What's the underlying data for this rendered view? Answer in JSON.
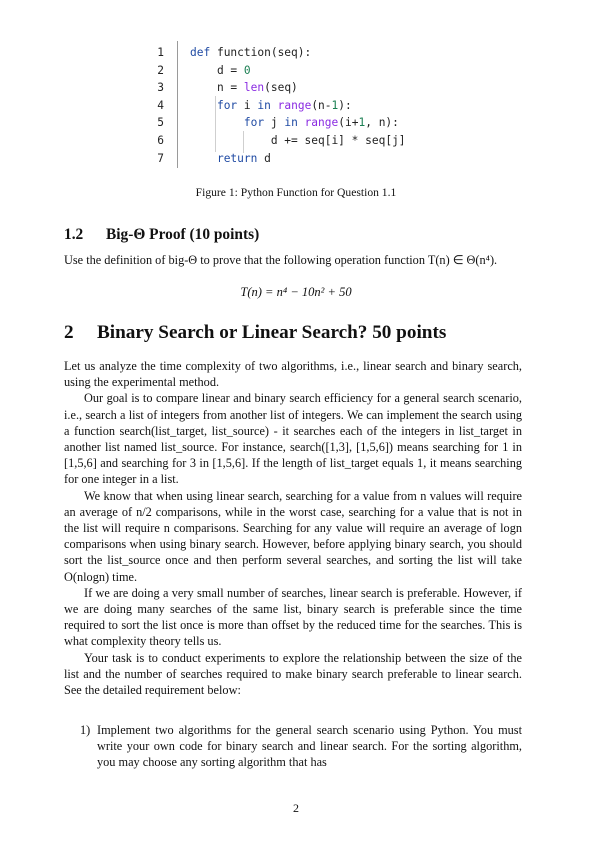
{
  "code": {
    "lines": [
      {
        "n": "1",
        "text": "def function(seq):"
      },
      {
        "n": "2",
        "text": "    d = 0"
      },
      {
        "n": "3",
        "text": "    n = len(seq)"
      },
      {
        "n": "4",
        "text": "    for i in range(n-1):"
      },
      {
        "n": "5",
        "text": "        for j in range(i+1, n):"
      },
      {
        "n": "6",
        "text": "            d += seq[i] * seq[j]"
      },
      {
        "n": "7",
        "text": "    return d"
      }
    ]
  },
  "figure_caption": "Figure 1: Python Function for Question 1.1",
  "subsection": {
    "number": "1.2",
    "title": "Big-Θ Proof (10 points)",
    "text": "Use the definition of big-Θ to prove that the following operation function T(n) ∈ Θ(n⁴).",
    "equation": "T(n) = n⁴ − 10n² + 50"
  },
  "section": {
    "number": "2",
    "title": "Binary Search or Linear Search? 50 points"
  },
  "paragraphs": [
    "Let us analyze the time complexity of two algorithms, i.e., linear search and binary search, using the experimental method.",
    "Our goal is to compare linear and binary search efficiency for a general search scenario, i.e., search a list of integers from another list of integers. We can implement the search using a function search(list_target, list_source) - it searches each of the integers in list_target in another list named list_source. For instance, search([1,3], [1,5,6]) means searching for 1 in [1,5,6] and searching for 3 in [1,5,6]. If the length of list_target equals 1, it means searching for one integer in a list.",
    "We know that when using linear search, searching for a value from n values will require an average of n/2 comparisons, while in the worst case, searching for a value that is not in the list will require n comparisons. Searching for any value will require an average of logn comparisons when using binary search. However, before applying binary search, you should sort the list_source once and then perform several searches, and sorting the list will take O(nlogn) time.",
    "If we are doing a very small number of searches, linear search is preferable. However, if we are doing many searches of the same list, binary search is preferable since the time required to sort the list once is more than offset by the reduced time for the searches. This is what complexity theory tells us.",
    "Your task is to conduct experiments to explore the relationship between the size of the list and the number of searches required to make binary search preferable to linear search. See the detailed requirement below:"
  ],
  "list_items": [
    {
      "marker": "1)",
      "text": "Implement two algorithms for the general search scenario using Python. You must write your own code for binary search and linear search. For the sorting algorithm, you may choose any sorting algorithm that has"
    }
  ],
  "page_number": "2"
}
